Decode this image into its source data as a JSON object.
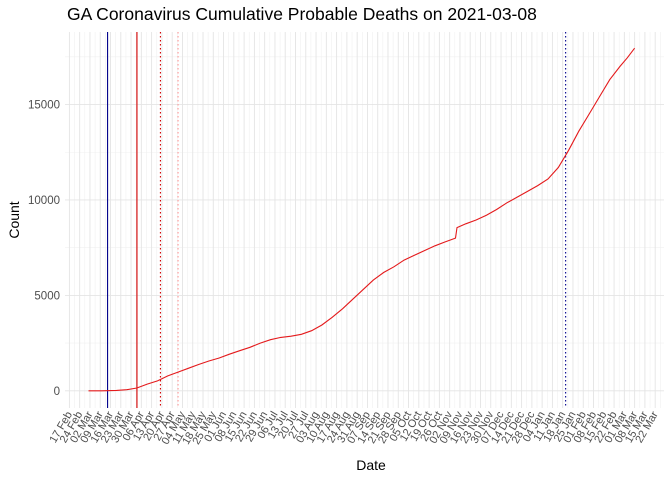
{
  "chart_data": {
    "type": "line",
    "title": "GA Coronavirus Cumulative Probable Deaths on 2021-03-08",
    "xlabel": "Date",
    "ylabel": "Count",
    "xlim": [
      "2020-02-14",
      "2021-03-28"
    ],
    "ylim": [
      -900,
      18800
    ],
    "y_ticks": [
      0,
      5000,
      10000,
      15000
    ],
    "x_tick_labels": [
      "17 Feb",
      "24 Feb",
      "02 Mar",
      "09 Mar",
      "16 Mar",
      "23 Mar",
      "30 Mar",
      "06 Apr",
      "13 Apr",
      "20 Apr",
      "27 Apr",
      "04 May",
      "11 May",
      "18 May",
      "25 May",
      "01 Jun",
      "08 Jun",
      "15 Jun",
      "22 Jun",
      "29 Jun",
      "06 Jul",
      "13 Jul",
      "20 Jul",
      "27 Jul",
      "03 Aug",
      "10 Aug",
      "17 Aug",
      "24 Aug",
      "31 Aug",
      "07 Sep",
      "14 Sep",
      "21 Sep",
      "28 Sep",
      "05 Oct",
      "12 Oct",
      "19 Oct",
      "26 Oct",
      "02 Nov",
      "09 Nov",
      "16 Nov",
      "23 Nov",
      "30 Nov",
      "07 Dec",
      "14 Dec",
      "21 Dec",
      "28 Dec",
      "04 Jan",
      "11 Jan",
      "18 Jan",
      "25 Jan",
      "01 Feb",
      "08 Feb",
      "15 Feb",
      "22 Feb",
      "01 Mar",
      "08 Mar",
      "15 Mar",
      "22 Mar"
    ],
    "x_tick_dates": [
      "2020-02-17",
      "2020-02-24",
      "2020-03-02",
      "2020-03-09",
      "2020-03-16",
      "2020-03-23",
      "2020-03-30",
      "2020-04-06",
      "2020-04-13",
      "2020-04-20",
      "2020-04-27",
      "2020-05-04",
      "2020-05-11",
      "2020-05-18",
      "2020-05-25",
      "2020-06-01",
      "2020-06-08",
      "2020-06-15",
      "2020-06-22",
      "2020-06-29",
      "2020-07-06",
      "2020-07-13",
      "2020-07-20",
      "2020-07-27",
      "2020-08-03",
      "2020-08-10",
      "2020-08-17",
      "2020-08-24",
      "2020-08-31",
      "2020-09-07",
      "2020-09-14",
      "2020-09-21",
      "2020-09-28",
      "2020-10-05",
      "2020-10-12",
      "2020-10-19",
      "2020-10-26",
      "2020-11-02",
      "2020-11-09",
      "2020-11-16",
      "2020-11-23",
      "2020-11-30",
      "2020-12-07",
      "2020-12-14",
      "2020-12-21",
      "2020-12-28",
      "2021-01-04",
      "2021-01-11",
      "2021-01-18",
      "2021-01-25",
      "2021-02-01",
      "2021-02-08",
      "2021-02-15",
      "2021-02-22",
      "2021-03-01",
      "2021-03-08",
      "2021-03-15",
      "2021-03-22"
    ],
    "series": [
      {
        "name": "Cumulative Probable Deaths",
        "color": "#e41a1c",
        "points": [
          [
            "2020-03-01",
            0
          ],
          [
            "2020-03-10",
            0
          ],
          [
            "2020-03-20",
            20
          ],
          [
            "2020-03-27",
            60
          ],
          [
            "2020-04-03",
            150
          ],
          [
            "2020-04-10",
            350
          ],
          [
            "2020-04-17",
            520
          ],
          [
            "2020-04-24",
            780
          ],
          [
            "2020-05-01",
            980
          ],
          [
            "2020-05-08",
            1180
          ],
          [
            "2020-05-15",
            1380
          ],
          [
            "2020-05-22",
            1560
          ],
          [
            "2020-05-29",
            1720
          ],
          [
            "2020-06-05",
            1920
          ],
          [
            "2020-06-12",
            2100
          ],
          [
            "2020-06-19",
            2280
          ],
          [
            "2020-06-26",
            2500
          ],
          [
            "2020-07-03",
            2680
          ],
          [
            "2020-07-10",
            2800
          ],
          [
            "2020-07-17",
            2860
          ],
          [
            "2020-07-24",
            2960
          ],
          [
            "2020-07-31",
            3150
          ],
          [
            "2020-08-07",
            3450
          ],
          [
            "2020-08-14",
            3850
          ],
          [
            "2020-08-21",
            4300
          ],
          [
            "2020-08-28",
            4800
          ],
          [
            "2020-09-04",
            5300
          ],
          [
            "2020-09-11",
            5800
          ],
          [
            "2020-09-18",
            6200
          ],
          [
            "2020-09-25",
            6500
          ],
          [
            "2020-10-02",
            6850
          ],
          [
            "2020-10-09",
            7100
          ],
          [
            "2020-10-16",
            7350
          ],
          [
            "2020-10-23",
            7600
          ],
          [
            "2020-10-30",
            7800
          ],
          [
            "2020-11-06",
            8000
          ],
          [
            "2020-11-07",
            8550
          ],
          [
            "2020-11-13",
            8750
          ],
          [
            "2020-11-20",
            8950
          ],
          [
            "2020-11-27",
            9200
          ],
          [
            "2020-12-04",
            9500
          ],
          [
            "2020-12-11",
            9850
          ],
          [
            "2020-12-18",
            10150
          ],
          [
            "2020-12-25",
            10450
          ],
          [
            "2021-01-01",
            10750
          ],
          [
            "2021-01-08",
            11100
          ],
          [
            "2021-01-15",
            11700
          ],
          [
            "2021-01-22",
            12600
          ],
          [
            "2021-01-29",
            13600
          ],
          [
            "2021-02-05",
            14500
          ],
          [
            "2021-02-12",
            15400
          ],
          [
            "2021-02-19",
            16300
          ],
          [
            "2021-02-26",
            17000
          ],
          [
            "2021-03-03",
            17450
          ],
          [
            "2021-03-08",
            17950
          ]
        ]
      }
    ],
    "vertical_markers": [
      {
        "date": "2020-03-14",
        "color": "#00008b",
        "style": "solid"
      },
      {
        "date": "2020-04-03",
        "color": "#d40000",
        "style": "solid"
      },
      {
        "date": "2020-04-19",
        "color": "#d40000",
        "style": "dotted"
      },
      {
        "date": "2020-05-01",
        "color": "#ff9999",
        "style": "dotted"
      },
      {
        "date": "2021-01-20",
        "color": "#00008b",
        "style": "dotted"
      }
    ]
  }
}
